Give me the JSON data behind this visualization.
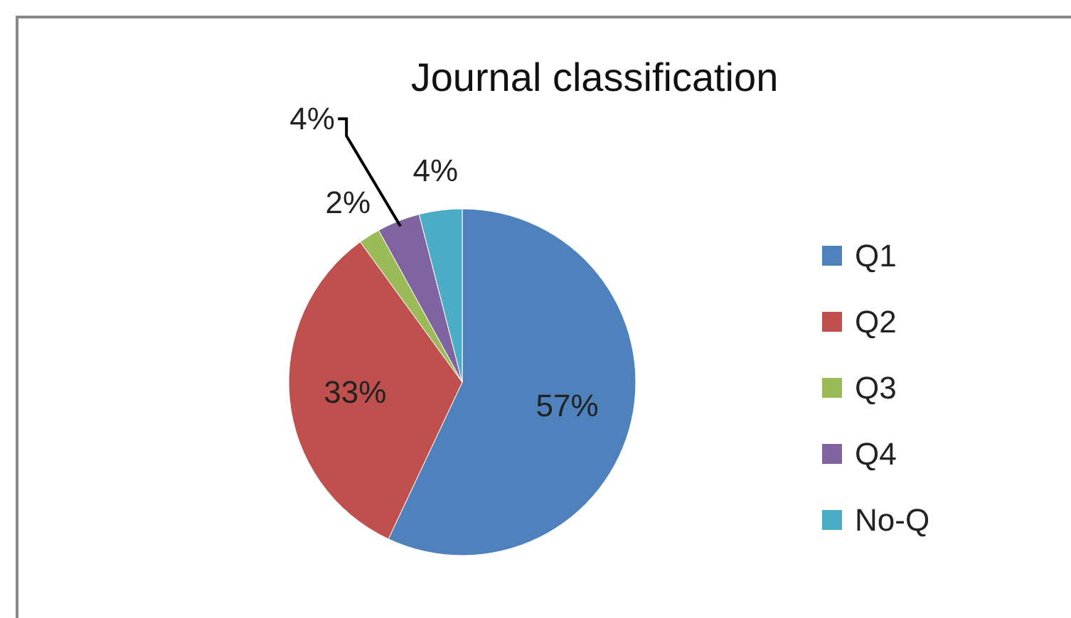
{
  "chart_data": {
    "type": "pie",
    "title": "Journal classification",
    "categories": [
      "Q1",
      "Q2",
      "Q3",
      "Q4",
      "No-Q"
    ],
    "values": [
      57,
      33,
      2,
      4,
      4
    ],
    "colors": [
      "#4f81bd",
      "#c0504d",
      "#9bbb59",
      "#8064a2",
      "#4bacc6"
    ],
    "value_labels": [
      "57%",
      "33%",
      "2%",
      "4%",
      "4%"
    ],
    "legend": "right"
  }
}
